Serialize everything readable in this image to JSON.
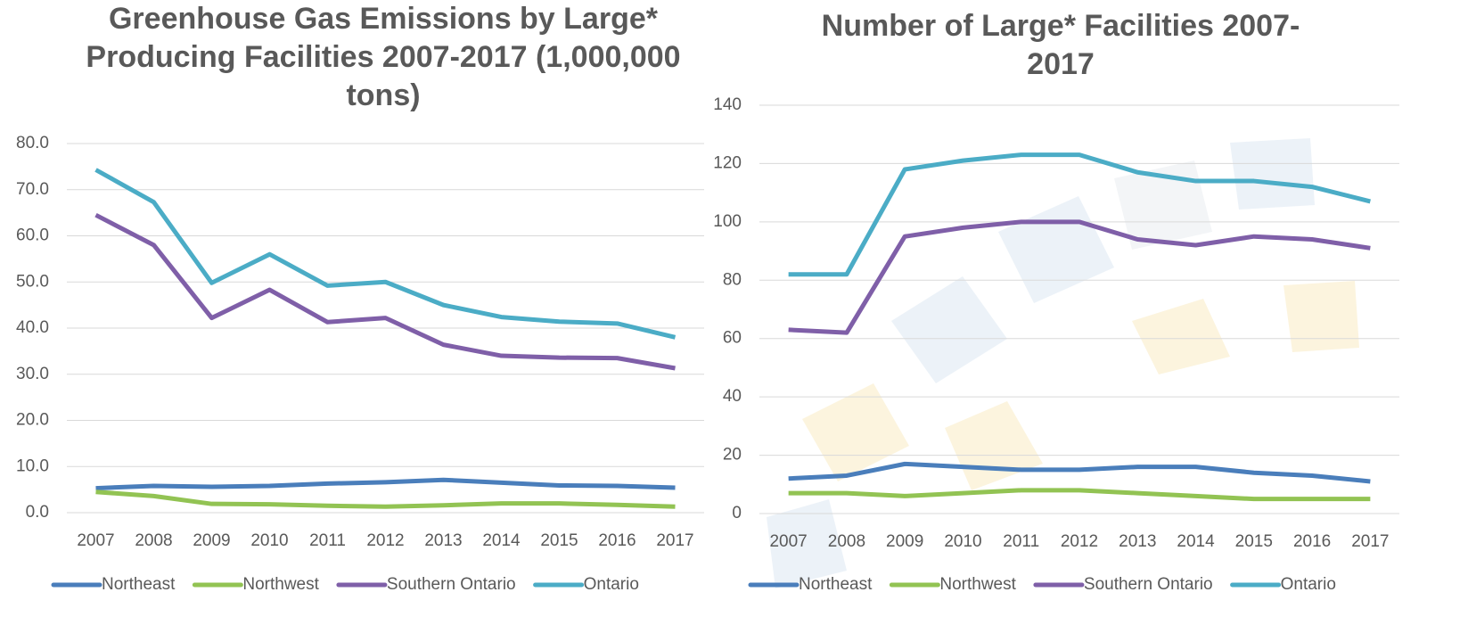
{
  "chart_data": [
    {
      "type": "line",
      "title": "Greenhouse Gas Emissions by Large* Producing Facilities 2007-2017 (1,000,000 tons)",
      "categories": [
        "2007",
        "2008",
        "2009",
        "2010",
        "2011",
        "2012",
        "2013",
        "2014",
        "2015",
        "2016",
        "2017"
      ],
      "series": [
        {
          "name": "Northeast",
          "color": "#4a7ebb",
          "values": [
            5.3,
            5.8,
            5.6,
            5.8,
            6.3,
            6.6,
            7.1,
            6.5,
            5.9,
            5.8,
            5.4
          ]
        },
        {
          "name": "Northwest",
          "color": "#92c353",
          "values": [
            4.5,
            3.6,
            1.9,
            1.8,
            1.5,
            1.3,
            1.6,
            2.0,
            2.0,
            1.7,
            1.3
          ]
        },
        {
          "name": "Southern Ontario",
          "color": "#7f5fa8",
          "values": [
            64.5,
            58.0,
            42.2,
            48.3,
            41.3,
            42.2,
            36.4,
            34.0,
            33.6,
            33.5,
            31.3
          ]
        },
        {
          "name": "Ontario",
          "color": "#4bacc6",
          "values": [
            74.3,
            67.3,
            49.8,
            56.0,
            49.2,
            50.0,
            45.0,
            42.4,
            41.4,
            41.0,
            38.0
          ]
        }
      ],
      "ylim": [
        0,
        80
      ],
      "yticks": [
        {
          "value": 0,
          "label": "0.0"
        },
        {
          "value": 10,
          "label": "10.0"
        },
        {
          "value": 20,
          "label": "20.0"
        },
        {
          "value": 30,
          "label": "30.0"
        },
        {
          "value": 40,
          "label": "40.0"
        },
        {
          "value": 50,
          "label": "50.0"
        },
        {
          "value": 60,
          "label": "60.0"
        },
        {
          "value": 70,
          "label": "70.0"
        },
        {
          "value": 80,
          "label": "80.0"
        }
      ],
      "grid": true,
      "legend": "bottom"
    },
    {
      "type": "line",
      "title": "Number of Large* Facilities 2007-2017",
      "categories": [
        "2007",
        "2008",
        "2009",
        "2010",
        "2011",
        "2012",
        "2013",
        "2014",
        "2015",
        "2016",
        "2017"
      ],
      "series": [
        {
          "name": "Northeast",
          "color": "#4a7ebb",
          "values": [
            12,
            13,
            17,
            16,
            15,
            15,
            16,
            16,
            14,
            13,
            11
          ]
        },
        {
          "name": "Northwest",
          "color": "#92c353",
          "values": [
            7,
            7,
            6,
            7,
            8,
            8,
            7,
            6,
            5,
            5,
            5
          ]
        },
        {
          "name": "Southern Ontario",
          "color": "#7f5fa8",
          "values": [
            63,
            62,
            95,
            98,
            100,
            100,
            94,
            92,
            95,
            94,
            91
          ]
        },
        {
          "name": "Ontario",
          "color": "#4bacc6",
          "values": [
            82,
            82,
            118,
            121,
            123,
            123,
            117,
            114,
            114,
            112,
            107
          ]
        }
      ],
      "ylim": [
        0,
        140
      ],
      "yticks": [
        0,
        20,
        40,
        60,
        80,
        100,
        120,
        140
      ],
      "grid": true,
      "legend": "bottom"
    }
  ]
}
